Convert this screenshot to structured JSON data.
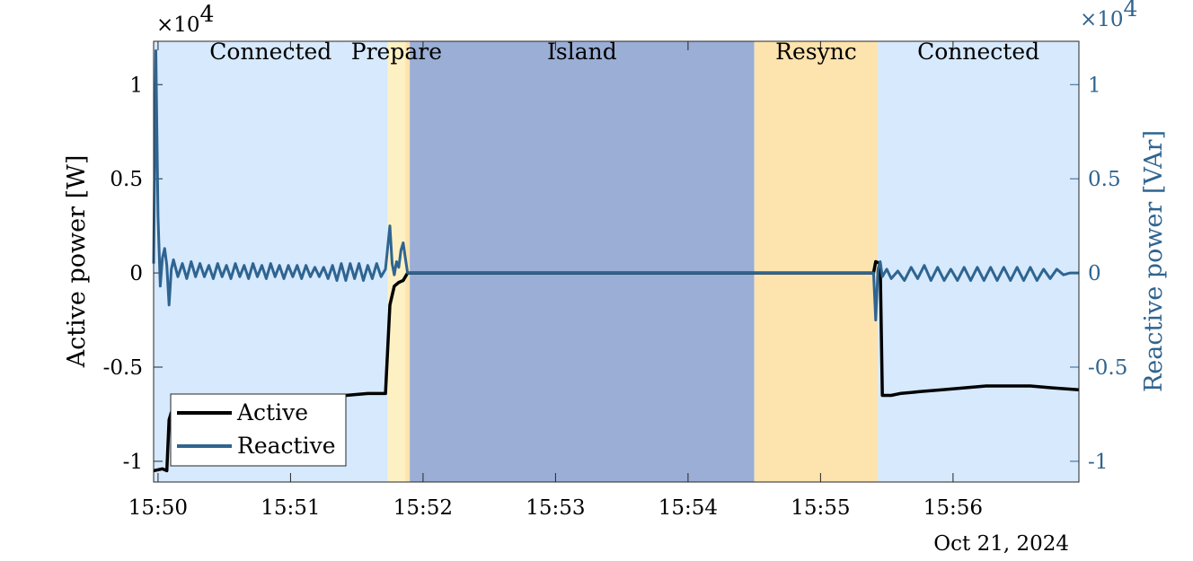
{
  "chart_data": {
    "type": "line",
    "title": "",
    "date_label": "Oct 21, 2024",
    "x_ticks": [
      "15:50",
      "15:51",
      "15:52",
      "15:53",
      "15:54",
      "15:55",
      "15:56"
    ],
    "xlim": [
      "15:49:58",
      "15:56:57"
    ],
    "left_axis": {
      "label": "Active power [W]",
      "multiplier": "×10",
      "exponent": "4",
      "ylim": [
        -1.11,
        1.23
      ],
      "ticks": [
        "-1",
        "-0.5",
        "0",
        "0.5",
        "1"
      ]
    },
    "right_axis": {
      "label": "Reactive power [VAr]",
      "multiplier": "×10",
      "exponent": "4",
      "ylim": [
        -1.11,
        1.23
      ],
      "ticks": [
        "-1",
        "-0.5",
        "0",
        "0.5",
        "1"
      ],
      "color": "#2f6490"
    },
    "regions": [
      {
        "label": "Connected",
        "start": "15:49:58",
        "end": "15:51:44",
        "color": "#d6e9fd"
      },
      {
        "label": "Prepare",
        "start": "15:51:44",
        "end": "15:51:52",
        "color": "#fdf1c4"
      },
      {
        "label": "",
        "start": "15:51:52",
        "end": "15:51:54",
        "color": "#fde3ad"
      },
      {
        "label": "Island",
        "start": "15:51:54",
        "end": "15:54:30",
        "color": "#9aaed6"
      },
      {
        "label": "Resync",
        "start": "15:54:30",
        "end": "15:55:26",
        "color": "#fde3ad"
      },
      {
        "label": "Connected",
        "start": "15:55:26",
        "end": "15:56:57",
        "color": "#d6e9fd"
      }
    ],
    "legend": {
      "position": "bottom-left",
      "entries": [
        "Active",
        "Reactive"
      ]
    },
    "series": [
      {
        "name": "Active",
        "axis": "left",
        "color": "#000000",
        "points": [
          [
            "15:49:58",
            -1.05
          ],
          [
            "15:50:02",
            -1.04
          ],
          [
            "15:50:04",
            -1.05
          ],
          [
            "15:50:05",
            -0.78
          ],
          [
            "15:50:06",
            -0.74
          ],
          [
            "15:50:10",
            -0.72
          ],
          [
            "15:50:20",
            -0.71
          ],
          [
            "15:50:35",
            -0.7
          ],
          [
            "15:50:50",
            -0.69
          ],
          [
            "15:51:05",
            -0.68
          ],
          [
            "15:51:15",
            -0.66
          ],
          [
            "15:51:25",
            -0.65
          ],
          [
            "15:51:35",
            -0.64
          ],
          [
            "15:51:43",
            -0.64
          ],
          [
            "15:51:45",
            -0.17
          ],
          [
            "15:51:47",
            -0.07
          ],
          [
            "15:51:49",
            -0.05
          ],
          [
            "15:51:51",
            -0.04
          ],
          [
            "15:51:53",
            0.0
          ],
          [
            "15:55:24",
            0.0
          ],
          [
            "15:55:25",
            0.06
          ],
          [
            "15:55:27",
            0.05
          ],
          [
            "15:55:28",
            -0.65
          ],
          [
            "15:55:32",
            -0.65
          ],
          [
            "15:55:36",
            -0.64
          ],
          [
            "15:55:45",
            -0.63
          ],
          [
            "15:55:55",
            -0.62
          ],
          [
            "15:56:05",
            -0.61
          ],
          [
            "15:56:15",
            -0.6
          ],
          [
            "15:56:25",
            -0.6
          ],
          [
            "15:56:35",
            -0.6
          ],
          [
            "15:56:45",
            -0.61
          ],
          [
            "15:56:57",
            -0.62
          ]
        ]
      },
      {
        "name": "Reactive",
        "axis": "right",
        "color": "#2f6490",
        "points": [
          [
            "15:49:58",
            0.05
          ],
          [
            "15:49:59",
            1.18
          ],
          [
            "15:50:00",
            0.3
          ],
          [
            "15:50:01",
            -0.07
          ],
          [
            "15:50:02",
            0.08
          ],
          [
            "15:50:03",
            0.13
          ],
          [
            "15:50:04",
            0.04
          ],
          [
            "15:50:05",
            -0.17
          ],
          [
            "15:50:06",
            0.02
          ],
          [
            "15:50:07",
            0.07
          ],
          [
            "15:50:09",
            -0.02
          ],
          [
            "15:50:11",
            0.05
          ],
          [
            "15:50:13",
            -0.03
          ],
          [
            "15:50:15",
            0.06
          ],
          [
            "15:50:17",
            -0.02
          ],
          [
            "15:50:19",
            0.05
          ],
          [
            "15:50:21",
            -0.02
          ],
          [
            "15:50:23",
            0.04
          ],
          [
            "15:50:25",
            -0.03
          ],
          [
            "15:50:27",
            0.05
          ],
          [
            "15:50:29",
            -0.02
          ],
          [
            "15:50:31",
            0.04
          ],
          [
            "15:50:33",
            -0.03
          ],
          [
            "15:50:35",
            0.05
          ],
          [
            "15:50:37",
            -0.02
          ],
          [
            "15:50:39",
            0.04
          ],
          [
            "15:50:41",
            -0.03
          ],
          [
            "15:50:43",
            0.05
          ],
          [
            "15:50:45",
            -0.02
          ],
          [
            "15:50:47",
            0.04
          ],
          [
            "15:50:49",
            -0.03
          ],
          [
            "15:50:51",
            0.05
          ],
          [
            "15:50:53",
            -0.02
          ],
          [
            "15:50:55",
            0.04
          ],
          [
            "15:50:57",
            -0.03
          ],
          [
            "15:50:59",
            0.04
          ],
          [
            "15:51:01",
            -0.02
          ],
          [
            "15:51:03",
            0.04
          ],
          [
            "15:51:05",
            -0.03
          ],
          [
            "15:51:07",
            0.04
          ],
          [
            "15:51:09",
            -0.02
          ],
          [
            "15:51:11",
            0.03
          ],
          [
            "15:51:13",
            -0.02
          ],
          [
            "15:51:15",
            0.03
          ],
          [
            "15:51:17",
            -0.03
          ],
          [
            "15:51:19",
            0.04
          ],
          [
            "15:51:21",
            -0.04
          ],
          [
            "15:51:23",
            0.05
          ],
          [
            "15:51:25",
            -0.04
          ],
          [
            "15:51:27",
            0.05
          ],
          [
            "15:51:29",
            -0.03
          ],
          [
            "15:51:31",
            0.05
          ],
          [
            "15:51:33",
            -0.04
          ],
          [
            "15:51:35",
            0.04
          ],
          [
            "15:51:37",
            -0.03
          ],
          [
            "15:51:39",
            0.05
          ],
          [
            "15:51:41",
            -0.02
          ],
          [
            "15:51:43",
            0.02
          ],
          [
            "15:51:45",
            0.25
          ],
          [
            "15:51:46",
            0.05
          ],
          [
            "15:51:47",
            -0.01
          ],
          [
            "15:51:48",
            0.06
          ],
          [
            "15:51:49",
            0.03
          ],
          [
            "15:51:50",
            0.12
          ],
          [
            "15:51:51",
            0.16
          ],
          [
            "15:51:52",
            0.08
          ],
          [
            "15:51:53",
            0.0
          ],
          [
            "15:55:22",
            0.0
          ],
          [
            "15:55:24",
            0.0
          ],
          [
            "15:55:25",
            -0.25
          ],
          [
            "15:55:26",
            0.02
          ],
          [
            "15:55:27",
            0.06
          ],
          [
            "15:55:28",
            -0.02
          ],
          [
            "15:55:30",
            0.02
          ],
          [
            "15:55:32",
            -0.03
          ],
          [
            "15:55:35",
            0.01
          ],
          [
            "15:55:38",
            -0.04
          ],
          [
            "15:55:41",
            0.03
          ],
          [
            "15:55:44",
            -0.03
          ],
          [
            "15:55:47",
            0.04
          ],
          [
            "15:55:50",
            -0.04
          ],
          [
            "15:55:53",
            0.03
          ],
          [
            "15:55:56",
            -0.04
          ],
          [
            "15:55:59",
            0.02
          ],
          [
            "15:56:02",
            -0.04
          ],
          [
            "15:56:05",
            0.03
          ],
          [
            "15:56:08",
            -0.04
          ],
          [
            "15:56:11",
            0.03
          ],
          [
            "15:56:14",
            -0.04
          ],
          [
            "15:56:17",
            0.03
          ],
          [
            "15:56:20",
            -0.04
          ],
          [
            "15:56:23",
            0.03
          ],
          [
            "15:56:26",
            -0.04
          ],
          [
            "15:56:29",
            0.03
          ],
          [
            "15:56:32",
            -0.04
          ],
          [
            "15:56:35",
            0.03
          ],
          [
            "15:56:38",
            -0.04
          ],
          [
            "15:56:41",
            0.02
          ],
          [
            "15:56:44",
            -0.03
          ],
          [
            "15:56:47",
            0.02
          ],
          [
            "15:56:50",
            -0.01
          ],
          [
            "15:56:53",
            0.0
          ],
          [
            "15:56:57",
            0.0
          ]
        ]
      }
    ]
  }
}
